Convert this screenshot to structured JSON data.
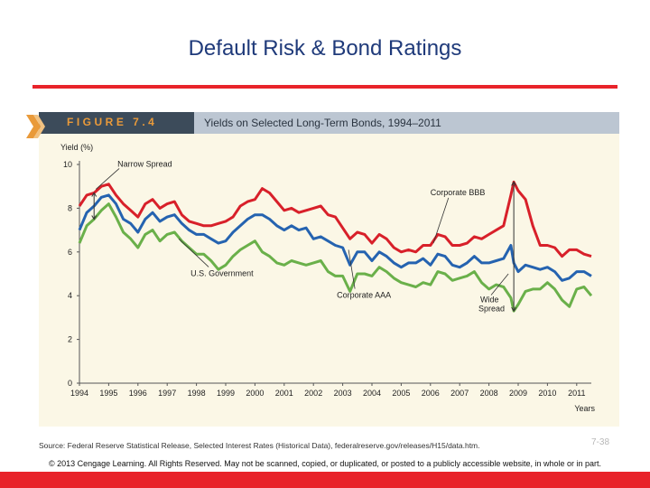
{
  "slide": {
    "title": "Default Risk & Bond Ratings",
    "source": "Source: Federal Reserve Statistical Release, Selected Interest Rates (Historical Data), federalreserve.gov/releases/H15/data.htm.",
    "page_number": "7-38",
    "copyright": "© 2013 Cengage Learning. All Rights Reserved. May not be scanned, copied, or duplicated, or posted to a publicly accessible website, in whole or in part."
  },
  "figure": {
    "label": "FIGURE 7.4",
    "caption": "Yields on Selected Long-Term Bonds, 1994–2011"
  },
  "colors": {
    "accent_red": "#e8232a",
    "title_blue": "#1f3a7a",
    "bbb": "#d8202a",
    "aaa": "#2563b0",
    "gov": "#6ab04a"
  },
  "chart_data": {
    "type": "line",
    "title": "Yields on Selected Long-Term Bonds, 1994–2011",
    "ylabel": "Yield (%)",
    "xlabel": "Years",
    "ylim": [
      0,
      10
    ],
    "xlim": [
      1994,
      2011.5
    ],
    "yticks": [
      0,
      2,
      4,
      6,
      8,
      10
    ],
    "xticks": [
      "1994",
      "1995",
      "1996",
      "1997",
      "1998",
      "1999",
      "2000",
      "2001",
      "2002",
      "2003",
      "2004",
      "2005",
      "2006",
      "2007",
      "2008",
      "2009",
      "2010",
      "2011"
    ],
    "grid": false,
    "series": [
      {
        "name": "Corporate BBB",
        "color": "#d8202a",
        "points": [
          [
            1994.0,
            8.1
          ],
          [
            1994.25,
            8.6
          ],
          [
            1994.5,
            8.7
          ],
          [
            1994.75,
            9.0
          ],
          [
            1995.0,
            9.1
          ],
          [
            1995.25,
            8.6
          ],
          [
            1995.5,
            8.2
          ],
          [
            1995.75,
            7.9
          ],
          [
            1996.0,
            7.6
          ],
          [
            1996.25,
            8.2
          ],
          [
            1996.5,
            8.4
          ],
          [
            1996.75,
            8.0
          ],
          [
            1997.0,
            8.2
          ],
          [
            1997.25,
            8.3
          ],
          [
            1997.5,
            7.7
          ],
          [
            1997.75,
            7.4
          ],
          [
            1998.0,
            7.3
          ],
          [
            1998.25,
            7.2
          ],
          [
            1998.5,
            7.2
          ],
          [
            1998.75,
            7.3
          ],
          [
            1999.0,
            7.4
          ],
          [
            1999.25,
            7.6
          ],
          [
            1999.5,
            8.1
          ],
          [
            1999.75,
            8.3
          ],
          [
            2000.0,
            8.4
          ],
          [
            2000.25,
            8.9
          ],
          [
            2000.5,
            8.7
          ],
          [
            2000.75,
            8.3
          ],
          [
            2001.0,
            7.9
          ],
          [
            2001.25,
            8.0
          ],
          [
            2001.5,
            7.8
          ],
          [
            2001.75,
            7.9
          ],
          [
            2002.0,
            8.0
          ],
          [
            2002.25,
            8.1
          ],
          [
            2002.5,
            7.7
          ],
          [
            2002.75,
            7.6
          ],
          [
            2003.0,
            7.1
          ],
          [
            2003.25,
            6.6
          ],
          [
            2003.5,
            6.9
          ],
          [
            2003.75,
            6.8
          ],
          [
            2004.0,
            6.4
          ],
          [
            2004.25,
            6.8
          ],
          [
            2004.5,
            6.6
          ],
          [
            2004.75,
            6.2
          ],
          [
            2005.0,
            6.0
          ],
          [
            2005.25,
            6.1
          ],
          [
            2005.5,
            6.0
          ],
          [
            2005.75,
            6.3
          ],
          [
            2006.0,
            6.3
          ],
          [
            2006.25,
            6.8
          ],
          [
            2006.5,
            6.7
          ],
          [
            2006.75,
            6.3
          ],
          [
            2007.0,
            6.3
          ],
          [
            2007.25,
            6.4
          ],
          [
            2007.5,
            6.7
          ],
          [
            2007.75,
            6.6
          ],
          [
            2008.0,
            6.8
          ],
          [
            2008.25,
            7.0
          ],
          [
            2008.5,
            7.2
          ],
          [
            2008.75,
            8.6
          ],
          [
            2008.85,
            9.2
          ],
          [
            2009.0,
            8.8
          ],
          [
            2009.25,
            8.4
          ],
          [
            2009.5,
            7.2
          ],
          [
            2009.75,
            6.3
          ],
          [
            2010.0,
            6.3
          ],
          [
            2010.25,
            6.2
          ],
          [
            2010.5,
            5.8
          ],
          [
            2010.75,
            6.1
          ],
          [
            2011.0,
            6.1
          ],
          [
            2011.25,
            5.9
          ],
          [
            2011.5,
            5.8
          ]
        ]
      },
      {
        "name": "Corporate AAA",
        "color": "#2563b0",
        "points": [
          [
            1994.0,
            7.0
          ],
          [
            1994.25,
            7.8
          ],
          [
            1994.5,
            8.1
          ],
          [
            1994.75,
            8.5
          ],
          [
            1995.0,
            8.6
          ],
          [
            1995.25,
            8.2
          ],
          [
            1995.5,
            7.5
          ],
          [
            1995.75,
            7.3
          ],
          [
            1996.0,
            6.9
          ],
          [
            1996.25,
            7.5
          ],
          [
            1996.5,
            7.8
          ],
          [
            1996.75,
            7.4
          ],
          [
            1997.0,
            7.6
          ],
          [
            1997.25,
            7.7
          ],
          [
            1997.5,
            7.3
          ],
          [
            1997.75,
            7.0
          ],
          [
            1998.0,
            6.8
          ],
          [
            1998.25,
            6.8
          ],
          [
            1998.5,
            6.6
          ],
          [
            1998.75,
            6.4
          ],
          [
            1999.0,
            6.5
          ],
          [
            1999.25,
            6.9
          ],
          [
            1999.5,
            7.2
          ],
          [
            1999.75,
            7.5
          ],
          [
            2000.0,
            7.7
          ],
          [
            2000.25,
            7.7
          ],
          [
            2000.5,
            7.5
          ],
          [
            2000.75,
            7.2
          ],
          [
            2001.0,
            7.0
          ],
          [
            2001.25,
            7.2
          ],
          [
            2001.5,
            7.0
          ],
          [
            2001.75,
            7.1
          ],
          [
            2002.0,
            6.6
          ],
          [
            2002.25,
            6.7
          ],
          [
            2002.5,
            6.5
          ],
          [
            2002.75,
            6.3
          ],
          [
            2003.0,
            6.2
          ],
          [
            2003.25,
            5.4
          ],
          [
            2003.5,
            6.0
          ],
          [
            2003.75,
            6.0
          ],
          [
            2004.0,
            5.6
          ],
          [
            2004.25,
            6.0
          ],
          [
            2004.5,
            5.8
          ],
          [
            2004.75,
            5.5
          ],
          [
            2005.0,
            5.3
          ],
          [
            2005.25,
            5.5
          ],
          [
            2005.5,
            5.5
          ],
          [
            2005.75,
            5.7
          ],
          [
            2006.0,
            5.4
          ],
          [
            2006.25,
            5.9
          ],
          [
            2006.5,
            5.8
          ],
          [
            2006.75,
            5.4
          ],
          [
            2007.0,
            5.3
          ],
          [
            2007.25,
            5.5
          ],
          [
            2007.5,
            5.8
          ],
          [
            2007.75,
            5.5
          ],
          [
            2008.0,
            5.5
          ],
          [
            2008.25,
            5.6
          ],
          [
            2008.5,
            5.7
          ],
          [
            2008.75,
            6.3
          ],
          [
            2008.85,
            5.5
          ],
          [
            2009.0,
            5.1
          ],
          [
            2009.25,
            5.4
          ],
          [
            2009.5,
            5.3
          ],
          [
            2009.75,
            5.2
          ],
          [
            2010.0,
            5.3
          ],
          [
            2010.25,
            5.1
          ],
          [
            2010.5,
            4.7
          ],
          [
            2010.75,
            4.8
          ],
          [
            2011.0,
            5.1
          ],
          [
            2011.25,
            5.1
          ],
          [
            2011.5,
            4.9
          ]
        ]
      },
      {
        "name": "U.S. Government",
        "color": "#6ab04a",
        "points": [
          [
            1994.0,
            6.4
          ],
          [
            1994.25,
            7.2
          ],
          [
            1994.5,
            7.5
          ],
          [
            1994.75,
            7.9
          ],
          [
            1995.0,
            8.2
          ],
          [
            1995.25,
            7.6
          ],
          [
            1995.5,
            6.9
          ],
          [
            1995.75,
            6.6
          ],
          [
            1996.0,
            6.2
          ],
          [
            1996.25,
            6.8
          ],
          [
            1996.5,
            7.0
          ],
          [
            1996.75,
            6.5
          ],
          [
            1997.0,
            6.8
          ],
          [
            1997.25,
            6.9
          ],
          [
            1997.5,
            6.5
          ],
          [
            1997.75,
            6.2
          ],
          [
            1998.0,
            5.9
          ],
          [
            1998.25,
            5.9
          ],
          [
            1998.5,
            5.6
          ],
          [
            1998.75,
            5.2
          ],
          [
            1999.0,
            5.4
          ],
          [
            1999.25,
            5.8
          ],
          [
            1999.5,
            6.1
          ],
          [
            1999.75,
            6.3
          ],
          [
            2000.0,
            6.5
          ],
          [
            2000.25,
            6.0
          ],
          [
            2000.5,
            5.8
          ],
          [
            2000.75,
            5.5
          ],
          [
            2001.0,
            5.4
          ],
          [
            2001.25,
            5.6
          ],
          [
            2001.5,
            5.5
          ],
          [
            2001.75,
            5.4
          ],
          [
            2002.0,
            5.5
          ],
          [
            2002.25,
            5.6
          ],
          [
            2002.5,
            5.1
          ],
          [
            2002.75,
            4.9
          ],
          [
            2003.0,
            4.9
          ],
          [
            2003.25,
            4.2
          ],
          [
            2003.5,
            5.0
          ],
          [
            2003.75,
            5.0
          ],
          [
            2004.0,
            4.9
          ],
          [
            2004.25,
            5.3
          ],
          [
            2004.5,
            5.1
          ],
          [
            2004.75,
            4.8
          ],
          [
            2005.0,
            4.6
          ],
          [
            2005.25,
            4.5
          ],
          [
            2005.5,
            4.4
          ],
          [
            2005.75,
            4.6
          ],
          [
            2006.0,
            4.5
          ],
          [
            2006.25,
            5.1
          ],
          [
            2006.5,
            5.0
          ],
          [
            2006.75,
            4.7
          ],
          [
            2007.0,
            4.8
          ],
          [
            2007.25,
            4.9
          ],
          [
            2007.5,
            5.1
          ],
          [
            2007.75,
            4.6
          ],
          [
            2008.0,
            4.3
          ],
          [
            2008.25,
            4.5
          ],
          [
            2008.5,
            4.4
          ],
          [
            2008.75,
            3.9
          ],
          [
            2008.85,
            3.3
          ],
          [
            2009.0,
            3.6
          ],
          [
            2009.25,
            4.2
          ],
          [
            2009.5,
            4.3
          ],
          [
            2009.75,
            4.3
          ],
          [
            2010.0,
            4.6
          ],
          [
            2010.25,
            4.3
          ],
          [
            2010.5,
            3.8
          ],
          [
            2010.75,
            3.5
          ],
          [
            2011.0,
            4.3
          ],
          [
            2011.25,
            4.4
          ],
          [
            2011.5,
            4.0
          ]
        ]
      }
    ],
    "annotations": [
      {
        "text": "Narrow Spread",
        "x": 1995.3,
        "y": 9.9,
        "target_x": 1994.5
      },
      {
        "text": "Corporate BBB",
        "x": 2006.0,
        "y": 8.6,
        "target_x": 2006.1,
        "target_y": 6.4
      },
      {
        "text": "U.S. Government",
        "x": 1997.8,
        "y": 4.9,
        "target_x": 1997.4,
        "target_y": 6.6
      },
      {
        "text": "Corporate AAA",
        "x": 2002.8,
        "y": 3.9,
        "target_x": 2003.2,
        "target_y": 6.1
      },
      {
        "text": "Wide Spread",
        "x": 2009.0,
        "y": 3.7,
        "target_x": 2008.85
      }
    ]
  }
}
